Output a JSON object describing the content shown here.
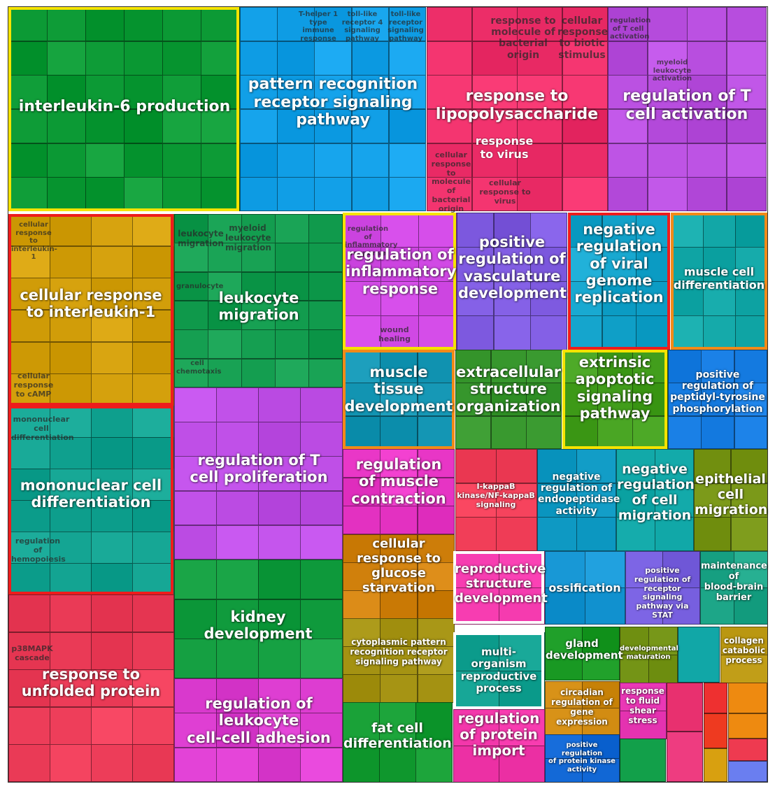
{
  "chart_data": {
    "type": "treemap",
    "title": "",
    "highlight_colors": {
      "yellow": "#f5e300",
      "red": "#ee1c1c",
      "orange": "#f28a18",
      "white": "#ffffff"
    },
    "groups": [
      {
        "label": "interleukin-6 production",
        "highlight": "yellow",
        "color": "#0c9a35"
      },
      {
        "label": "pattern recognition receptor signaling pathway",
        "highlight": "",
        "color": "#12a0e8"
      },
      {
        "label": "response to lipopolysaccharide",
        "highlight": "",
        "color": "#ee2f6a"
      },
      {
        "label": "regulation of T cell activation",
        "highlight": "",
        "color": "#b94fe0"
      },
      {
        "label": "cellular response to interleukin-1",
        "highlight": "red",
        "color": "#d6a20e"
      },
      {
        "label": "leukocyte migration",
        "highlight": "",
        "color": "#149e50"
      },
      {
        "label": "regulation of inflammatory response",
        "highlight": "yellow",
        "color": "#cc44e0"
      },
      {
        "label": "positive regulation of vasculature development",
        "highlight": "",
        "color": "#7e5ae0"
      },
      {
        "label": "negative regulation of viral genome replication",
        "highlight": "red",
        "color": "#14a4cc"
      },
      {
        "label": "muscle cell differentiation",
        "highlight": "orange",
        "color": "#12a7a7"
      },
      {
        "label": "muscle tissue development",
        "highlight": "orange",
        "color": "#1496b4"
      },
      {
        "label": "extracellular structure organization",
        "highlight": "",
        "color": "#3a9a30"
      },
      {
        "label": "extrinsic apoptotic signaling pathway",
        "highlight": "yellow",
        "color": "#44a01e"
      },
      {
        "label": "positive regulation of peptidyl-tyrosine phosphorylation",
        "highlight": "",
        "color": "#1a80e6"
      },
      {
        "label": "mononuclear cell differentiation",
        "highlight": "red",
        "color": "#11a290"
      },
      {
        "label": "regulation of T cell proliferation",
        "highlight": "",
        "color": "#be4ee6"
      },
      {
        "label": "regulation of muscle contraction",
        "highlight": "",
        "color": "#ea38c8"
      },
      {
        "label": "I-kappaB kinase/NF-kappaB signaling",
        "highlight": "",
        "color": "#ee3b55"
      },
      {
        "label": "negative regulation of endopeptidase activity",
        "highlight": "",
        "color": "#139ec8"
      },
      {
        "label": "negative regulation of cell migration",
        "highlight": "",
        "color": "#11a8a8"
      },
      {
        "label": "epithelial cell migration",
        "highlight": "",
        "color": "#7c9a1a"
      },
      {
        "label": "cellular response to glucose starvation",
        "highlight": "",
        "color": "#d2820e"
      },
      {
        "label": "reproductive structure development",
        "highlight": "white",
        "color": "#ee34a8"
      },
      {
        "label": "ossification",
        "highlight": "",
        "color": "#1696d4"
      },
      {
        "label": "positive regulation of receptor signaling pathway via STAT",
        "highlight": "",
        "color": "#7a62e2"
      },
      {
        "label": "maintenance of blood-brain barrier",
        "highlight": "",
        "color": "#1ba486"
      },
      {
        "label": "kidney development",
        "highlight": "",
        "color": "#15a042"
      },
      {
        "label": "response to unfolded protein",
        "highlight": "",
        "color": "#ee3e5a"
      },
      {
        "label": "cytoplasmic pattern recognition receptor signaling pathway",
        "highlight": "",
        "color": "#a69414"
      },
      {
        "label": "multi-organism reproductive process",
        "highlight": "white",
        "color": "#12a292"
      },
      {
        "label": "gland development",
        "highlight": "",
        "color": "#1a9a24"
      },
      {
        "label": "developmental maturation",
        "highlight": "",
        "color": "#7a9a1c"
      },
      {
        "label": "collagen catabolic process",
        "highlight": "",
        "color": "#bb9812"
      },
      {
        "label": "regulation of leukocyte cell-cell adhesion",
        "highlight": "",
        "color": "#de3ed2"
      },
      {
        "label": "fat cell differentiation",
        "highlight": "",
        "color": "#129a30"
      },
      {
        "label": "regulation of protein import",
        "highlight": "",
        "color": "#ee32a6"
      },
      {
        "label": "circadian regulation of gene expression",
        "highlight": "",
        "color": "#d08a10"
      },
      {
        "label": "response to fluid shear stress",
        "highlight": "",
        "color": "#e836b4"
      },
      {
        "label": "positive regulation of protein kinase activity",
        "highlight": "",
        "color": "#146ad8"
      }
    ],
    "small_terms": [
      "T-helper 1 type immune response",
      "toll-like receptor 4 signaling pathway",
      "toll-like receptor signaling pathway",
      "response to molecule of bacterial origin",
      "cellular response to biotic stimulus",
      "response to virus",
      "cellular response to molecule of bacterial origin",
      "cellular response to virus",
      "regulation of T cell activation",
      "myeloid leukocyte activation",
      "cellular response to interleukin-1",
      "cellular response to cAMP",
      "leukocyte migration",
      "myeloid leukocyte migration",
      "granulocyte",
      "cell chemotaxis",
      "regulation of inflammatory response",
      "wound healing",
      "mononuclear cell differentiation",
      "regulation of hemopoiesis",
      "p38MAPK cascade"
    ]
  }
}
